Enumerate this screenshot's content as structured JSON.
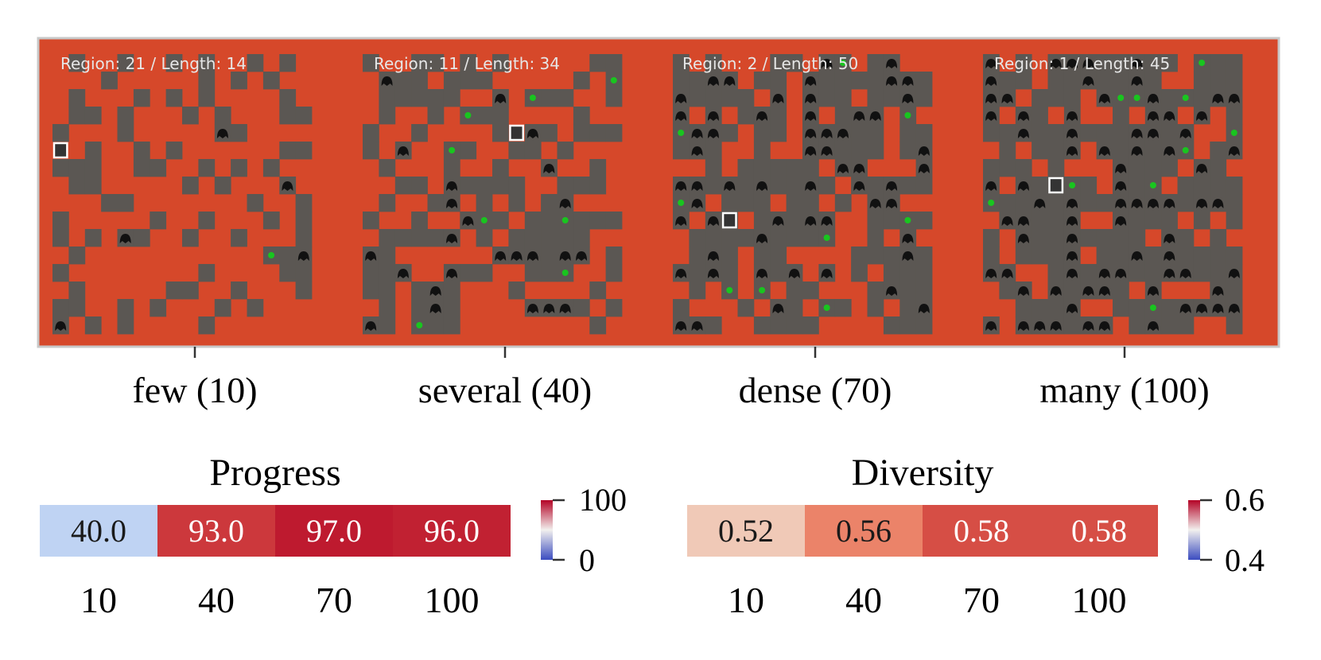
{
  "chart_data": [
    {
      "type": "image-grid",
      "description_labels": true,
      "panels": [
        {
          "overlay_text": "Region: 21 / Length: 14",
          "category": "few (10)"
        },
        {
          "overlay_text": "Region: 11 / Length: 34",
          "category": "several (40)"
        },
        {
          "overlay_text": "Region: 2 / Length: 50",
          "category": "dense (70)"
        },
        {
          "overlay_text": "Region: 1 / Length: 45",
          "category": "many (100)"
        }
      ]
    },
    {
      "type": "heatmap",
      "title": "Progress",
      "categories": [
        "10",
        "40",
        "70",
        "100"
      ],
      "values": [
        40.0,
        93.0,
        97.0,
        96.0
      ],
      "value_labels": [
        "40.0",
        "93.0",
        "97.0",
        "96.0"
      ],
      "colorbar": {
        "min": 0,
        "max": 100,
        "min_label": "0",
        "max_label": "100",
        "colormap": "coolwarm"
      }
    },
    {
      "type": "heatmap",
      "title": "Diversity",
      "categories": [
        "10",
        "40",
        "70",
        "100"
      ],
      "values": [
        0.52,
        0.56,
        0.58,
        0.58
      ],
      "value_labels": [
        "0.52",
        "0.56",
        "0.58",
        "0.58"
      ],
      "colorbar": {
        "min": 0.4,
        "max": 0.6,
        "min_label": "0.4",
        "max_label": "0.6",
        "colormap": "coolwarm"
      }
    }
  ],
  "colors": {
    "floor": "#d6482a",
    "wall": "#5b5753",
    "frame": "#c8c8c8",
    "enemy": "#111111",
    "path": "#19c51f",
    "player_border": "#ffffff",
    "overlay_text": "#e6e6e6"
  }
}
